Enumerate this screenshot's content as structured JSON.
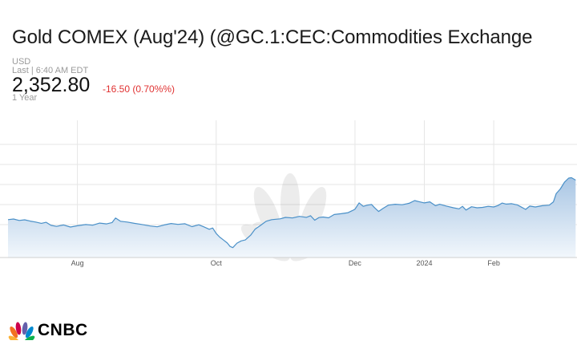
{
  "title": "Gold COMEX (Aug'24) (@GC.1:CEC:Commodities Exchange",
  "currency": "USD",
  "last_label": "Last | 6:40 AM EDT",
  "price": "2,352.80",
  "change": "-16.50 (0.70%%)",
  "period": "1 Year",
  "colors": {
    "line": "#4a90c8",
    "fill_top": "#a9c6e4",
    "fill_bottom": "#f2f7fc",
    "change": "#e03131",
    "grid": "#e6e6e6"
  },
  "logo": {
    "text": "CNBC",
    "icon": "peacock-icon"
  },
  "chart_data": {
    "type": "area",
    "x_tick_labels": [
      "Aug",
      "Oct",
      "Dec",
      "2024",
      "Feb"
    ],
    "x_tick_months": [
      1,
      3,
      5,
      6,
      7
    ],
    "x_range_months": [
      0,
      8.2
    ],
    "ylim": [
      1780,
      2450
    ],
    "grid": true,
    "watermark": "CNBC",
    "series": [
      {
        "values": [
          [
            0.0,
            1965
          ],
          [
            0.08,
            1968
          ],
          [
            0.16,
            1961
          ],
          [
            0.24,
            1964
          ],
          [
            0.32,
            1958
          ],
          [
            0.4,
            1953
          ],
          [
            0.48,
            1947
          ],
          [
            0.55,
            1952
          ],
          [
            0.62,
            1937
          ],
          [
            0.7,
            1932
          ],
          [
            0.8,
            1939
          ],
          [
            0.9,
            1929
          ],
          [
            1.0,
            1935
          ],
          [
            1.12,
            1941
          ],
          [
            1.22,
            1938
          ],
          [
            1.32,
            1948
          ],
          [
            1.42,
            1944
          ],
          [
            1.5,
            1951
          ],
          [
            1.55,
            1973
          ],
          [
            1.62,
            1957
          ],
          [
            1.72,
            1953
          ],
          [
            1.82,
            1947
          ],
          [
            1.92,
            1942
          ],
          [
            2.05,
            1934
          ],
          [
            2.15,
            1930
          ],
          [
            2.25,
            1939
          ],
          [
            2.35,
            1946
          ],
          [
            2.45,
            1942
          ],
          [
            2.55,
            1945
          ],
          [
            2.65,
            1931
          ],
          [
            2.75,
            1940
          ],
          [
            2.82,
            1930
          ],
          [
            2.9,
            1918
          ],
          [
            2.95,
            1924
          ],
          [
            3.0,
            1897
          ],
          [
            3.05,
            1880
          ],
          [
            3.1,
            1867
          ],
          [
            3.16,
            1851
          ],
          [
            3.2,
            1834
          ],
          [
            3.24,
            1828
          ],
          [
            3.3,
            1850
          ],
          [
            3.36,
            1861
          ],
          [
            3.42,
            1866
          ],
          [
            3.5,
            1890
          ],
          [
            3.56,
            1918
          ],
          [
            3.64,
            1937
          ],
          [
            3.72,
            1957
          ],
          [
            3.8,
            1965
          ],
          [
            3.92,
            1969
          ],
          [
            4.0,
            1976
          ],
          [
            4.1,
            1973
          ],
          [
            4.2,
            1981
          ],
          [
            4.3,
            1976
          ],
          [
            4.36,
            1984
          ],
          [
            4.42,
            1962
          ],
          [
            4.48,
            1975
          ],
          [
            4.54,
            1978
          ],
          [
            4.62,
            1974
          ],
          [
            4.7,
            1990
          ],
          [
            4.8,
            1994
          ],
          [
            4.9,
            1999
          ],
          [
            4.96,
            2009
          ],
          [
            5.0,
            2016
          ],
          [
            5.06,
            2047
          ],
          [
            5.12,
            2030
          ],
          [
            5.18,
            2036
          ],
          [
            5.24,
            2039
          ],
          [
            5.28,
            2024
          ],
          [
            5.34,
            2005
          ],
          [
            5.4,
            2019
          ],
          [
            5.48,
            2036
          ],
          [
            5.58,
            2040
          ],
          [
            5.68,
            2038
          ],
          [
            5.78,
            2045
          ],
          [
            5.86,
            2058
          ],
          [
            5.92,
            2053
          ],
          [
            6.0,
            2047
          ],
          [
            6.08,
            2052
          ],
          [
            6.16,
            2033
          ],
          [
            6.22,
            2040
          ],
          [
            6.32,
            2031
          ],
          [
            6.42,
            2023
          ],
          [
            6.5,
            2018
          ],
          [
            6.55,
            2030
          ],
          [
            6.6,
            2012
          ],
          [
            6.68,
            2028
          ],
          [
            6.76,
            2023
          ],
          [
            6.84,
            2025
          ],
          [
            6.92,
            2030
          ],
          [
            7.0,
            2027
          ],
          [
            7.06,
            2034
          ],
          [
            7.12,
            2046
          ],
          [
            7.18,
            2041
          ],
          [
            7.26,
            2043
          ],
          [
            7.34,
            2037
          ],
          [
            7.4,
            2026
          ],
          [
            7.46,
            2015
          ],
          [
            7.52,
            2031
          ],
          [
            7.6,
            2027
          ],
          [
            7.7,
            2033
          ],
          [
            7.8,
            2036
          ],
          [
            7.86,
            2052
          ],
          [
            7.9,
            2092
          ],
          [
            7.96,
            2115
          ],
          [
            8.02,
            2148
          ],
          [
            8.08,
            2168
          ],
          [
            8.12,
            2170
          ],
          [
            8.18,
            2158
          ],
          [
            8.24,
            2165
          ],
          [
            8.3,
            2170
          ],
          [
            8.36,
            2162
          ],
          [
            8.42,
            2171
          ],
          [
            8.48,
            2166
          ],
          [
            8.52,
            2178
          ],
          [
            8.56,
            2175
          ]
        ]
      }
    ]
  }
}
